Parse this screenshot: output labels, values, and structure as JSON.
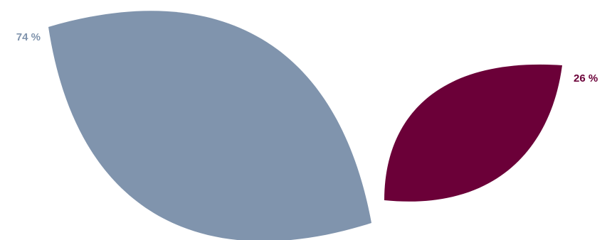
{
  "chart_data": {
    "type": "pie",
    "style": "petal",
    "title": "",
    "slices": [
      {
        "label": "74 %",
        "value": 74,
        "color": "#8094ad"
      },
      {
        "label": "26 %",
        "value": 26,
        "color": "#6b0038"
      }
    ]
  }
}
